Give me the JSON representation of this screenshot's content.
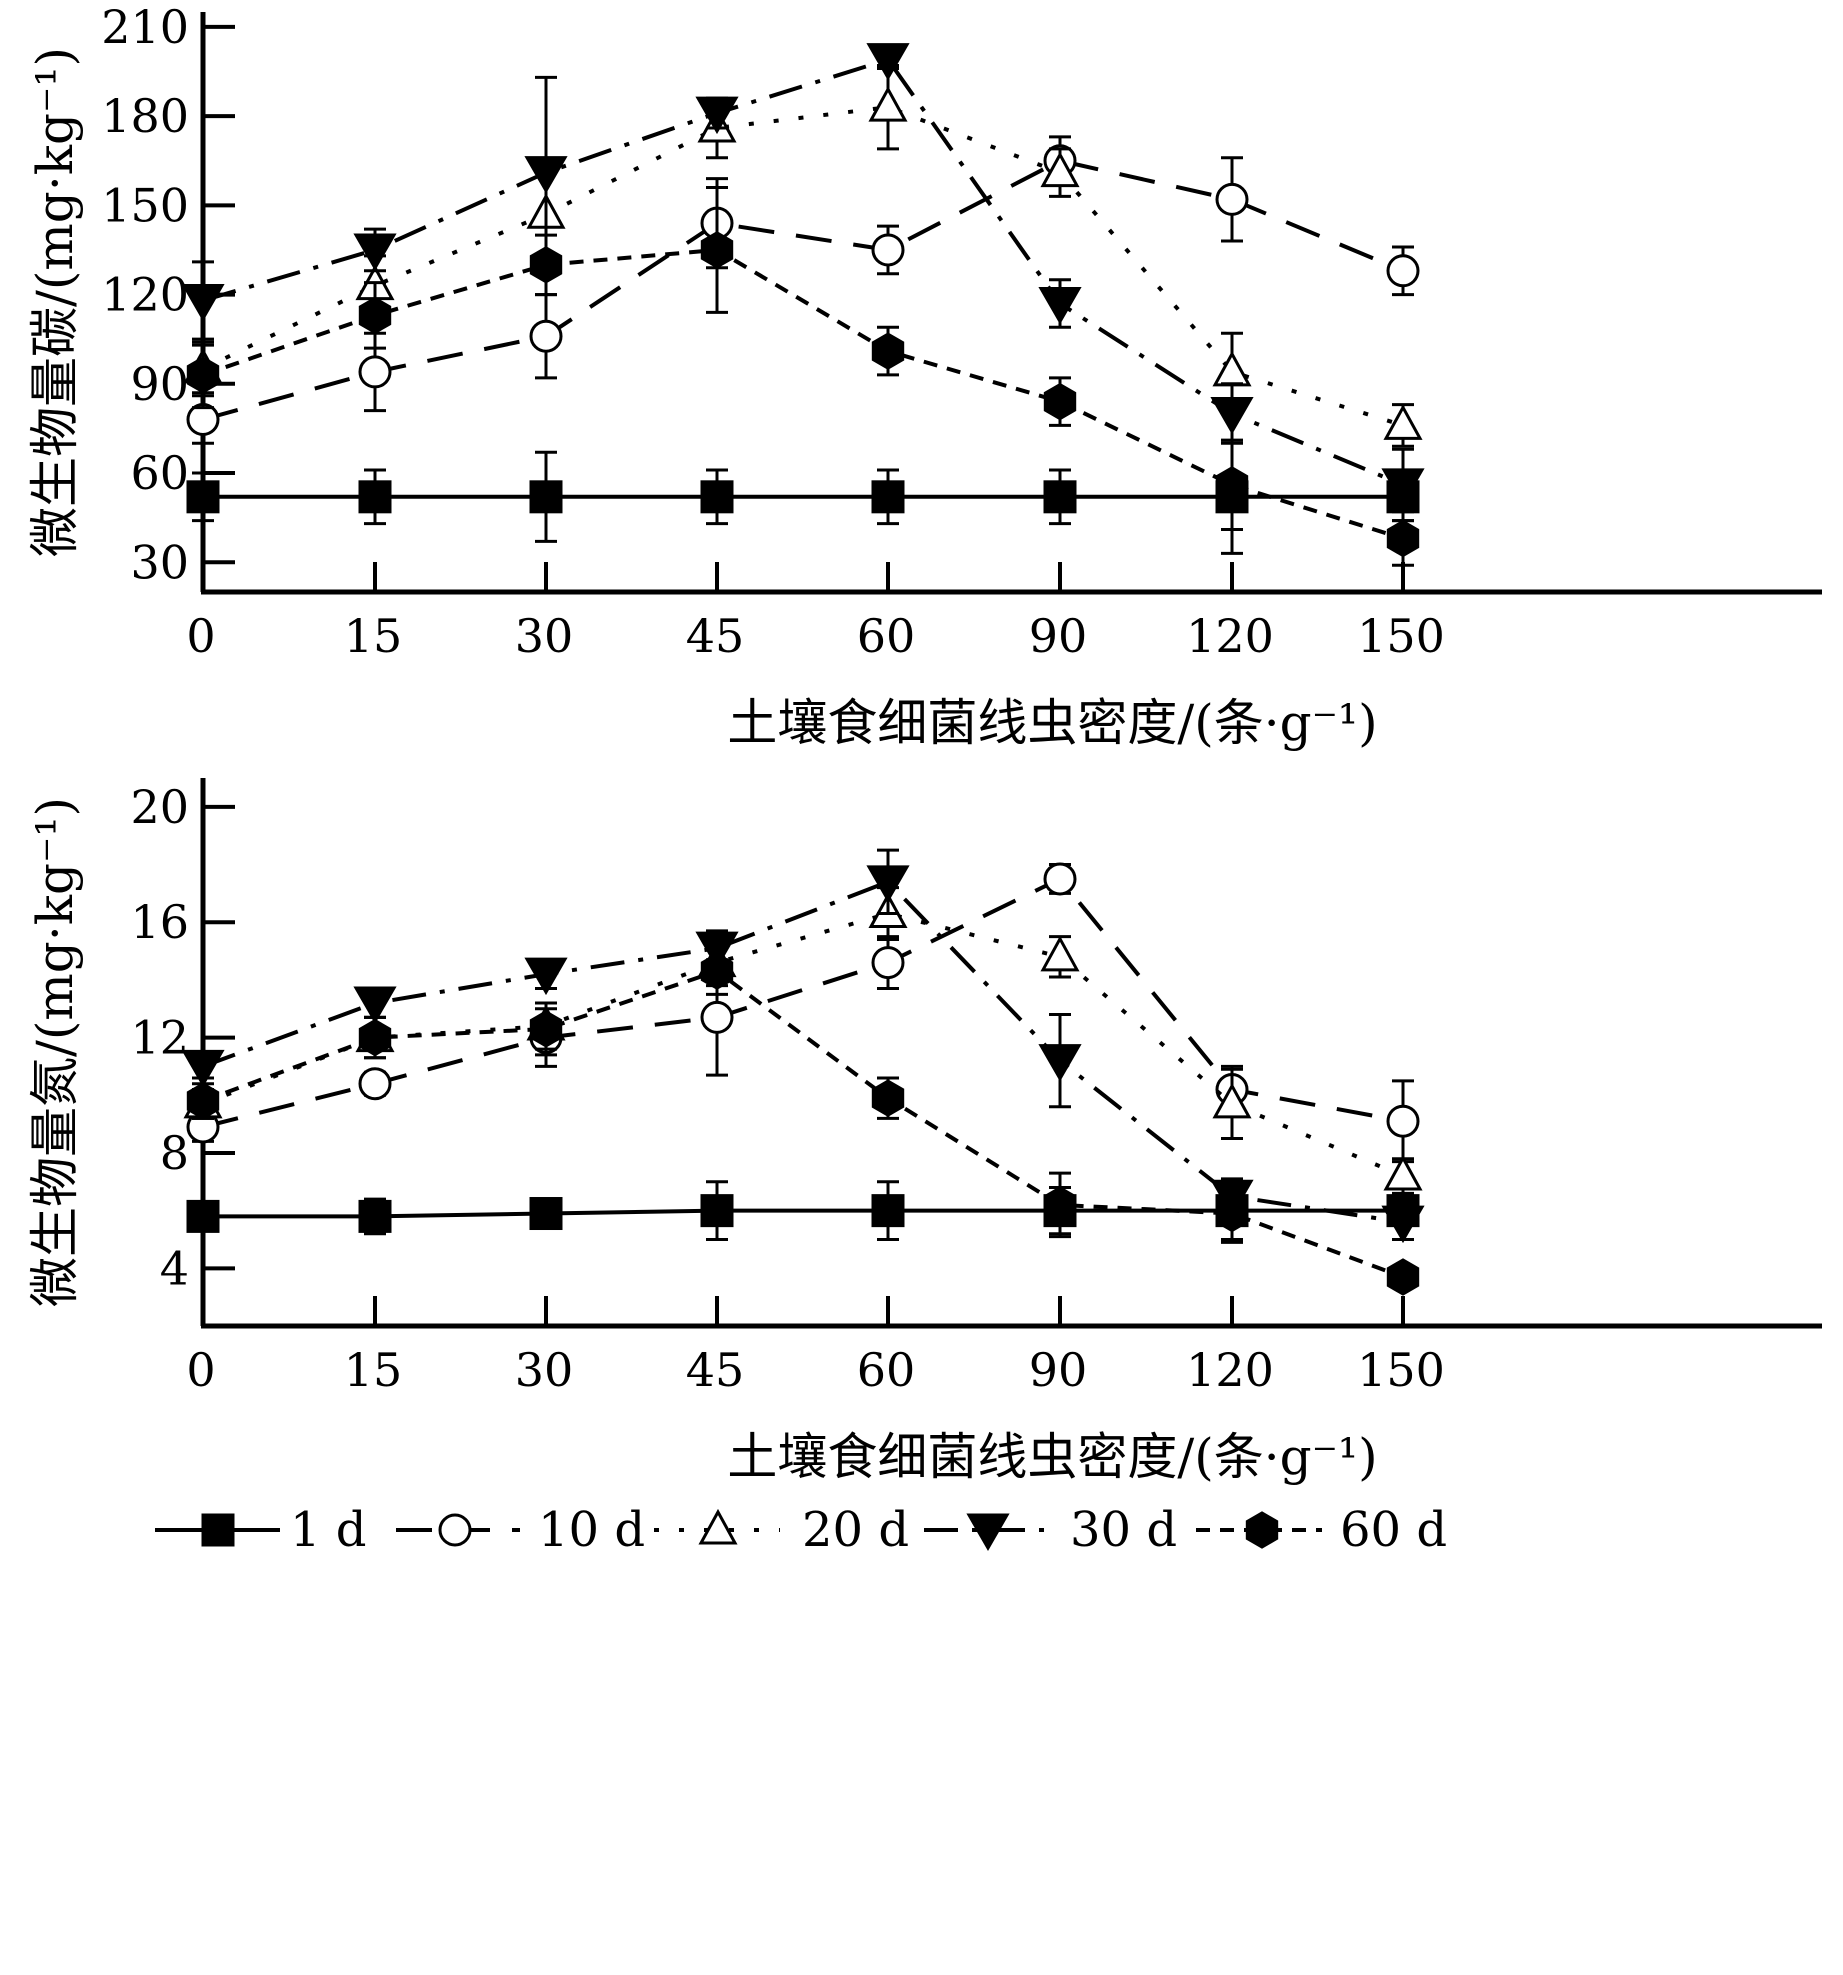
{
  "chart_data": [
    {
      "type": "line",
      "title": "",
      "ylabel": "微生物量碳/(mg·kg⁻¹)",
      "xlabel": "土壤食细菌线虫密度/(条·g⁻¹)",
      "categories": [
        "0",
        "15",
        "30",
        "45",
        "60",
        "90",
        "120",
        "150"
      ],
      "yticks": [
        30,
        60,
        90,
        120,
        150,
        180,
        210
      ],
      "ylim": [
        20,
        215
      ],
      "grid": false,
      "series": [
        {
          "name": "1 d",
          "values": [
            52,
            52,
            52,
            52,
            52,
            52,
            52,
            52
          ],
          "errors": [
            8,
            9,
            15,
            9,
            9,
            9,
            19,
            8
          ]
        },
        {
          "name": "10 d",
          "values": [
            78,
            94,
            106,
            144,
            135,
            165,
            152,
            128
          ],
          "errors": [
            8,
            13,
            14,
            15,
            8,
            8,
            14,
            8
          ]
        },
        {
          "name": "20 d",
          "values": [
            95,
            123,
            147,
            176,
            183,
            161,
            94,
            76
          ],
          "errors": [
            8,
            10,
            15,
            10,
            14,
            8,
            13,
            7
          ]
        },
        {
          "name": "30 d",
          "values": [
            118,
            135,
            161,
            181,
            199,
            117,
            80,
            56
          ],
          "errors": [
            13,
            7,
            32,
            5,
            3,
            8,
            10,
            12
          ]
        },
        {
          "name": "60 d",
          "values": [
            93,
            113,
            130,
            135,
            101,
            84,
            56,
            38
          ],
          "errors": [
            11,
            11,
            10,
            21,
            8,
            8,
            15,
            9
          ]
        }
      ]
    },
    {
      "type": "line",
      "title": "",
      "ylabel": "微生物量氮/(mg·kg⁻¹)",
      "xlabel": "土壤食细菌线虫密度/(条·g⁻¹)",
      "categories": [
        "0",
        "15",
        "30",
        "45",
        "60",
        "90",
        "120",
        "150"
      ],
      "yticks": [
        4,
        8,
        12,
        16,
        20
      ],
      "ylim": [
        2,
        21
      ],
      "grid": false,
      "series": [
        {
          "name": "1 d",
          "values": [
            5.8,
            5.8,
            5.9,
            6.0,
            6.0,
            6.0,
            6.0,
            6.0
          ],
          "errors": [
            0.4,
            0.6,
            0.3,
            1.0,
            1.0,
            0.8,
            1.0,
            0.5
          ]
        },
        {
          "name": "10 d",
          "values": [
            8.9,
            10.4,
            12.0,
            12.7,
            14.6,
            17.5,
            10.2,
            9.1
          ],
          "errors": [
            0.5,
            0.4,
            1.0,
            2.0,
            0.9,
            0.5,
            0.8,
            1.4
          ]
        },
        {
          "name": "20 d",
          "values": [
            9.7,
            12.0,
            12.4,
            14.6,
            16.3,
            14.8,
            9.7,
            7.2
          ],
          "errors": [
            0.5,
            0.7,
            0.8,
            0.8,
            0.9,
            0.7,
            1.2,
            0.6
          ]
        },
        {
          "name": "30 d",
          "values": [
            11.0,
            13.2,
            14.2,
            15.1,
            17.4,
            11.2,
            6.5,
            5.6
          ],
          "errors": [
            0.4,
            0.5,
            0.5,
            0.6,
            1.1,
            1.6,
            0.6,
            0.6
          ]
        },
        {
          "name": "60 d",
          "values": [
            9.8,
            12.0,
            12.3,
            14.3,
            9.9,
            6.2,
            5.9,
            3.7
          ],
          "errors": [
            0.6,
            0.7,
            0.9,
            0.8,
            0.7,
            1.1,
            1.0,
            0.3
          ]
        }
      ]
    }
  ],
  "legend": {
    "placement": "bottom",
    "entries": [
      "1 d",
      "10 d",
      "20 d",
      "30 d",
      "60 d"
    ]
  },
  "series_styles": [
    {
      "dash": "",
      "marker": "filled-square",
      "color": "#000000"
    },
    {
      "dash": "36 22",
      "marker": "open-circle",
      "color": "#000000"
    },
    {
      "dash": "5 20",
      "marker": "open-triangle",
      "color": "#000000"
    },
    {
      "dash": "34 14 5 14",
      "marker": "filled-triangle-down",
      "color": "#000000"
    },
    {
      "dash": "14 10",
      "marker": "filled-hexagon",
      "color": "#000000"
    }
  ]
}
